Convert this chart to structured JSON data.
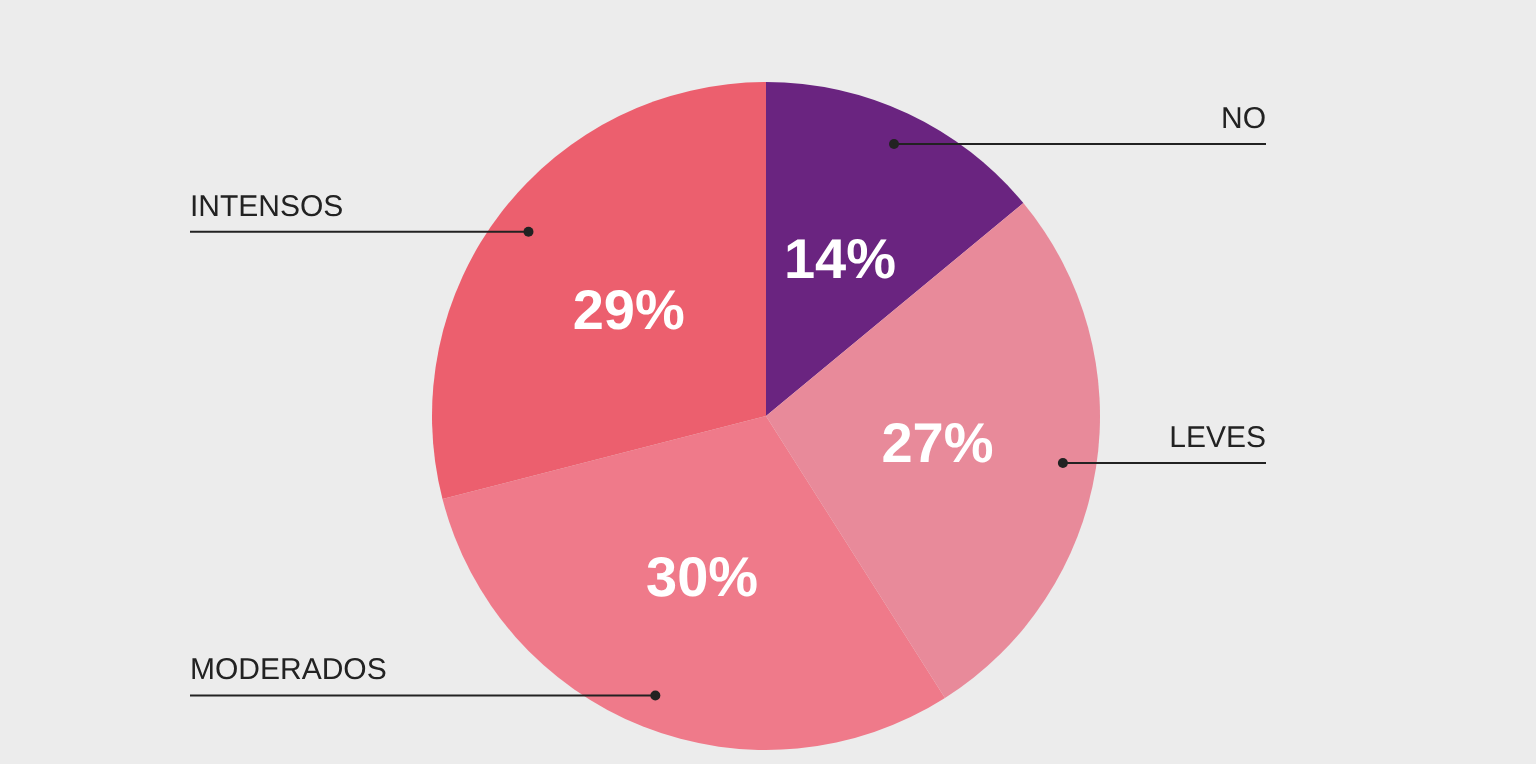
{
  "chart_data": {
    "type": "pie",
    "categories": [
      "NO",
      "LEVES",
      "MODERADOS",
      "INTENSOS"
    ],
    "values": [
      14,
      27,
      30,
      29
    ],
    "value_labels": [
      "14%",
      "27%",
      "30%",
      "29%"
    ],
    "colors": [
      "#6a2480",
      "#e88a9a",
      "#ef7a8a",
      "#ec5f6e"
    ]
  }
}
